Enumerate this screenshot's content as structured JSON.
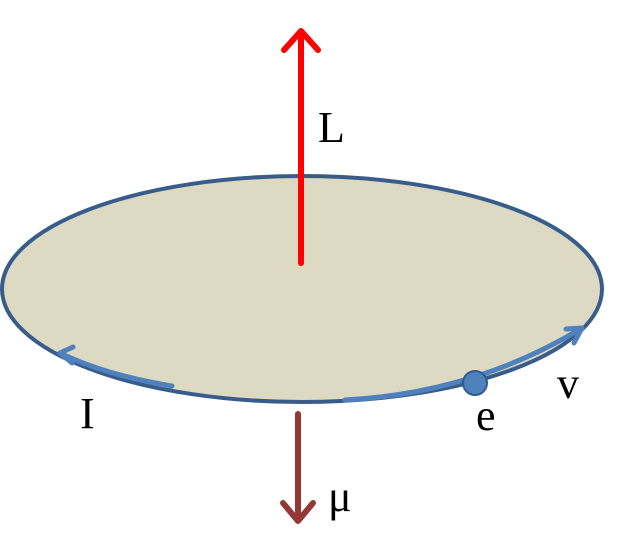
{
  "labels": {
    "angular_momentum": "L",
    "current": "I",
    "magnetic_moment": "μ",
    "electron": "e",
    "velocity": "v"
  },
  "colors": {
    "disk_fill": "#DDD9C3",
    "disk_edge": "#385D8A",
    "orbit_arrow": "#4F81BD",
    "electron": "#4F81BD",
    "angular_momentum_arrow": "#FF0000",
    "magnetic_moment_arrow": "#953735"
  }
}
